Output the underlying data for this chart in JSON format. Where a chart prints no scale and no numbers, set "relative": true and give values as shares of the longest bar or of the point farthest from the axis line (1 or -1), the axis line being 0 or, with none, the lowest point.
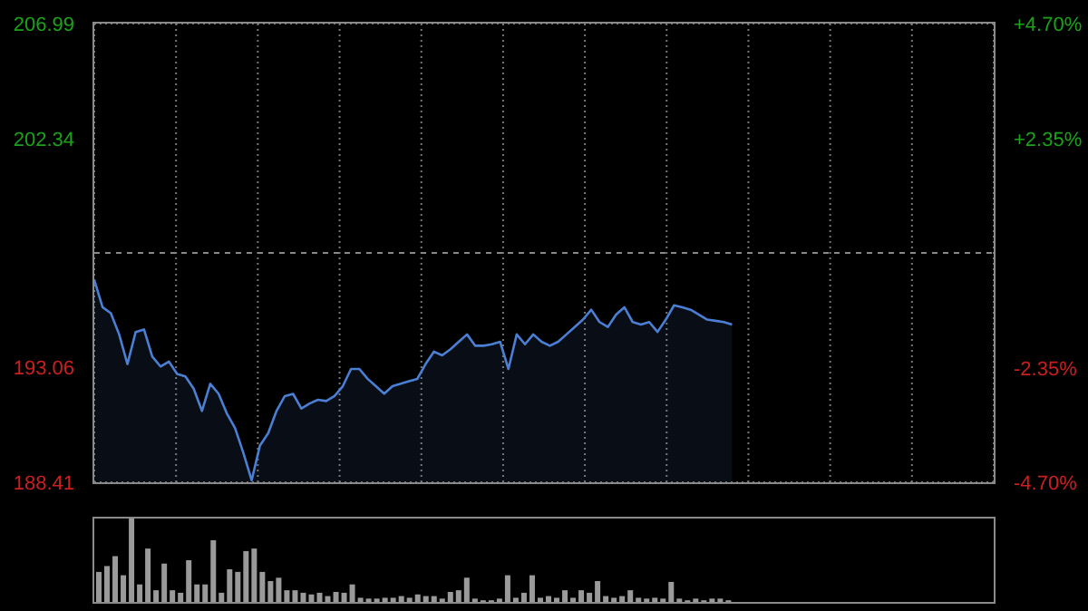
{
  "chart_data": [
    {
      "type": "area",
      "categories": [
        null,
        null,
        null,
        null,
        null,
        null,
        null,
        null,
        null,
        null,
        null,
        null,
        null,
        null,
        null,
        null,
        null,
        null,
        null,
        null,
        null,
        null,
        null,
        null,
        null,
        null,
        null,
        null,
        null,
        null,
        null,
        null,
        null,
        null,
        null,
        null,
        null,
        null,
        null,
        null,
        null,
        null,
        null,
        null,
        null,
        null,
        null,
        null,
        null,
        null,
        null,
        null,
        null,
        null,
        null,
        null,
        null,
        null,
        null,
        null,
        null,
        null,
        null,
        null,
        null,
        null,
        null,
        null,
        null,
        null,
        null,
        null,
        null,
        null,
        null,
        null,
        null,
        null
      ],
      "ylim": [
        188.41,
        206.99
      ],
      "yticks": [
        188.41,
        193.06,
        202.34,
        206.99
      ],
      "y2lim": [
        -4.7,
        4.7
      ],
      "y2ticks": [
        {
          "value": -4.7,
          "label": "-4.70%"
        },
        {
          "value": -2.35,
          "label": "-2.35%"
        },
        {
          "value": 2.35,
          "label": "+2.35%"
        },
        {
          "value": 4.7,
          "label": "+4.70%"
        }
      ],
      "tick_labels": "y",
      "grid": true,
      "ref_lines": [
        {
          "axis": "y",
          "value": 197.7,
          "color": "#888888",
          "line_style": "dashed"
        }
      ],
      "series": [
        {
          "color": "#4a7fd4",
          "values": [
            196.6,
            195.5,
            195.26,
            194.4,
            193.2,
            194.5,
            194.6,
            193.5,
            193.1,
            193.3,
            192.8,
            192.7,
            192.2,
            191.3,
            192.4,
            192.0,
            191.2,
            190.6,
            189.6,
            188.49,
            189.9,
            190.4,
            191.3,
            191.9,
            191.99,
            191.4,
            191.6,
            191.75,
            191.7,
            191.9,
            192.3,
            193.0,
            193.0,
            192.6,
            192.3,
            192.0,
            192.3,
            192.4,
            192.5,
            192.6,
            193.2,
            193.7,
            193.55,
            193.8,
            194.1,
            194.4,
            193.94,
            193.94,
            194.0,
            194.1,
            193.0,
            194.4,
            194.0,
            194.4,
            194.1,
            193.94,
            194.1,
            194.4,
            194.7,
            195.0,
            195.4,
            194.9,
            194.7,
            195.2,
            195.5,
            194.9,
            194.8,
            194.9,
            194.5,
            195.0,
            195.58,
            195.5,
            195.4,
            195.2,
            195.0,
            194.95,
            194.9,
            194.8
          ]
        }
      ]
    },
    {
      "type": "bar",
      "relative": true,
      "tick_labels": false,
      "categories": [
        null,
        null,
        null,
        null,
        null,
        null,
        null,
        null,
        null,
        null,
        null,
        null,
        null,
        null,
        null,
        null,
        null,
        null,
        null,
        null,
        null,
        null,
        null,
        null,
        null,
        null,
        null,
        null,
        null,
        null,
        null,
        null,
        null,
        null,
        null,
        null,
        null,
        null,
        null,
        null,
        null,
        null,
        null,
        null,
        null,
        null,
        null,
        null,
        null,
        null,
        null,
        null,
        null,
        null,
        null,
        null,
        null,
        null,
        null,
        null,
        null,
        null,
        null,
        null,
        null,
        null,
        null,
        null,
        null,
        null,
        null,
        null,
        null,
        null,
        null,
        null,
        null,
        null
      ],
      "series": [
        {
          "color": "#9a9a9a",
          "values": [
            0.36,
            0.43,
            0.55,
            0.32,
            1,
            0.21,
            0.64,
            0.14,
            0.46,
            0.14,
            0.11,
            0.5,
            0.21,
            0.21,
            0.74,
            0.11,
            0.39,
            0.36,
            0.61,
            0.64,
            0.36,
            0.25,
            0.29,
            0.14,
            0.14,
            0.11,
            0.09,
            0.11,
            0.07,
            0.12,
            0.11,
            0.21,
            0.05,
            0.04,
            0.04,
            0.05,
            0.05,
            0.07,
            0.05,
            0.09,
            0.07,
            0.07,
            0.04,
            0.12,
            0.14,
            0.29,
            0.04,
            0.02,
            0.02,
            0.04,
            0.32,
            0.05,
            0.11,
            0.32,
            0.05,
            0.07,
            0.05,
            0.14,
            0.05,
            0.14,
            0.11,
            0.25,
            0.07,
            0.05,
            0.07,
            0.14,
            0.05,
            0.04,
            0.05,
            0.04,
            0.24,
            0.04,
            0.02,
            0.04,
            0.02,
            0.04,
            0.04,
            0.02
          ]
        }
      ]
    }
  ]
}
